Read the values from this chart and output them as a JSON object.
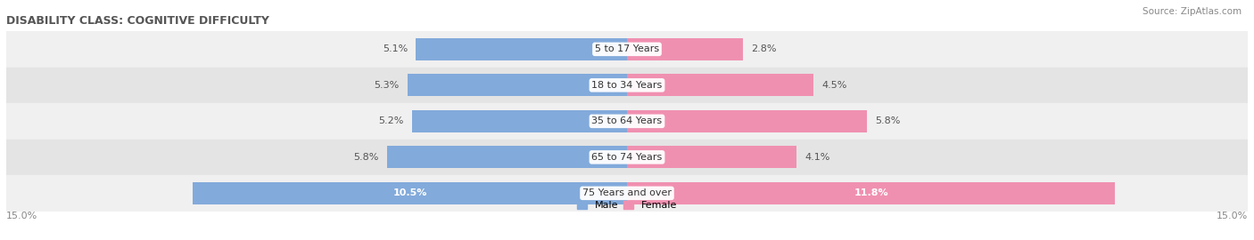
{
  "title": "DISABILITY CLASS: COGNITIVE DIFFICULTY",
  "source": "Source: ZipAtlas.com",
  "categories": [
    "5 to 17 Years",
    "18 to 34 Years",
    "35 to 64 Years",
    "65 to 74 Years",
    "75 Years and over"
  ],
  "male_values": [
    5.1,
    5.3,
    5.2,
    5.8,
    10.5
  ],
  "female_values": [
    2.8,
    4.5,
    5.8,
    4.1,
    11.8
  ],
  "max_val": 15.0,
  "male_color": "#82aadb",
  "female_color": "#f090b0",
  "row_bg_light": "#f0f0f0",
  "row_bg_dark": "#e4e4e4",
  "label_color_dark": "#555555",
  "label_color_white": "#ffffff",
  "title_color": "#555555",
  "axis_label_color": "#888888",
  "source_color": "#888888",
  "bar_height": 0.62,
  "figsize": [
    14.06,
    2.7
  ],
  "dpi": 100,
  "title_fontsize": 9,
  "label_fontsize": 8,
  "cat_fontsize": 8,
  "legend_fontsize": 8
}
